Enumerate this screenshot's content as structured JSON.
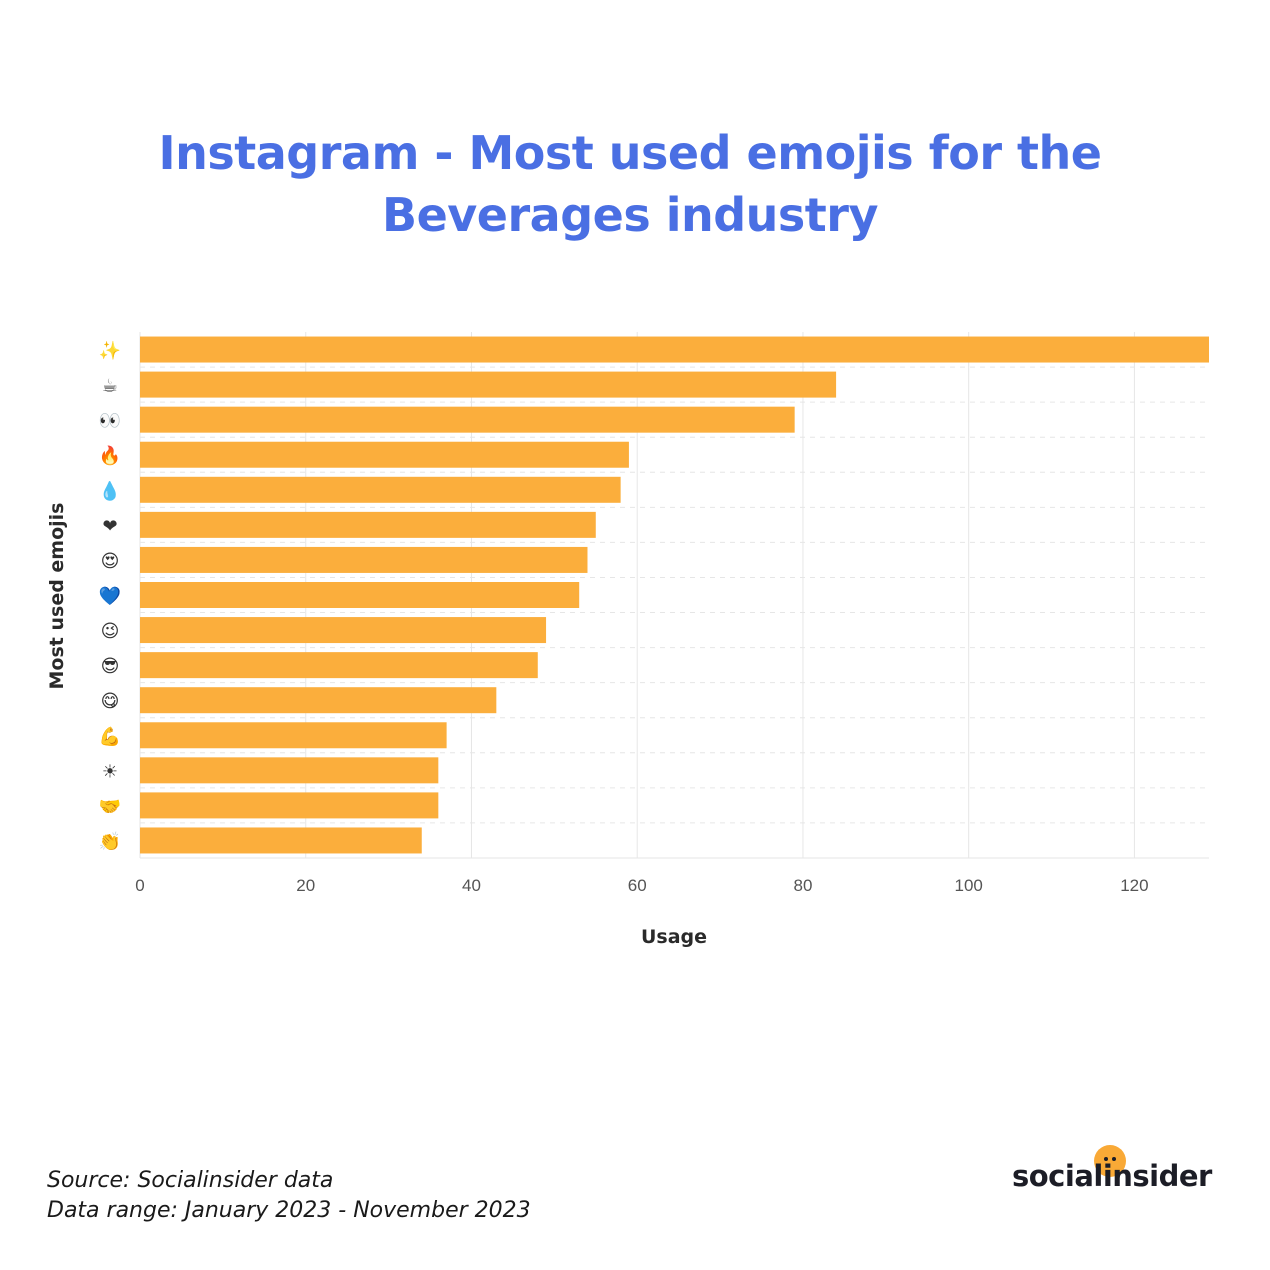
{
  "title": "Instagram - Most used emojis for the Beverages industry",
  "footer": {
    "source": "Source: Socialinsider data",
    "range": "Data range: January 2023 - November 2023"
  },
  "logo": {
    "text": "socialinsider"
  },
  "colors": {
    "bar": "#fbae3c",
    "title": "#4a6fe3",
    "grid": "#e6e6e6",
    "tick": "#555555",
    "axis_label": "#2a2a2a"
  },
  "chart_data": {
    "type": "bar",
    "orientation": "horizontal",
    "title": "Instagram - Most used emojis for the Beverages industry",
    "xlabel": "Usage",
    "ylabel": "Most used emojis",
    "xlim": [
      0,
      129
    ],
    "xticks": [
      0,
      20,
      40,
      60,
      80,
      100,
      120
    ],
    "grid": true,
    "categories": [
      "✨",
      "☕",
      "👀",
      "🔥",
      "💧",
      "❤",
      "😍",
      "💙",
      "😉",
      "😎",
      "😋",
      "💪",
      "☀",
      "🤝",
      "👏"
    ],
    "values": [
      129,
      84,
      79,
      59,
      58,
      55,
      54,
      53,
      49,
      48,
      43,
      37,
      36,
      36,
      34
    ]
  }
}
